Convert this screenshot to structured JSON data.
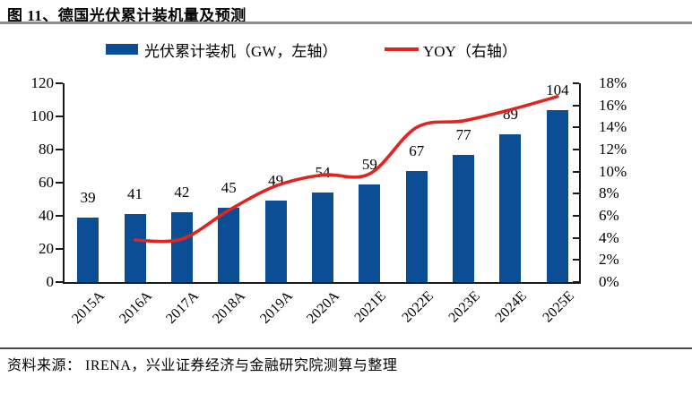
{
  "figure": {
    "title": "图 11、德国光伏累计装机量及预测",
    "source": "资料来源： IRENA，兴业证券经济与金融研究院测算与整理"
  },
  "colors": {
    "bar": "#0b4e96",
    "line": "#e02420",
    "axis": "#1a1a1a",
    "title_rule": "#8e8e8e"
  },
  "chart_data": {
    "type": "bar+line",
    "title": "德国光伏累计装机量及预测",
    "categories": [
      "2015A",
      "2016A",
      "2017A",
      "2018A",
      "2019A",
      "2020A",
      "2021E",
      "2022E",
      "2023E",
      "2024E",
      "2025E"
    ],
    "series": [
      {
        "name": "光伏累计装机（GW，左轴）",
        "type": "bar",
        "axis": "left",
        "color": "#0b4e96",
        "values": [
          39,
          41,
          42,
          45,
          49,
          54,
          59,
          67,
          77,
          89,
          104
        ]
      },
      {
        "name": "YOY（右轴）",
        "type": "line",
        "axis": "right",
        "color": "#e02420",
        "values": [
          null,
          3.8,
          3.9,
          6.5,
          8.7,
          9.7,
          9.8,
          14.0,
          14.6,
          15.6,
          16.8
        ]
      }
    ],
    "left_axis": {
      "min": 0,
      "max": 120,
      "step": 20,
      "tick_labels": [
        "0",
        "20",
        "40",
        "60",
        "80",
        "100",
        "120"
      ]
    },
    "right_axis": {
      "min": 0,
      "max": 18,
      "step": 2,
      "tick_labels": [
        "0%",
        "2%",
        "4%",
        "6%",
        "8%",
        "10%",
        "12%",
        "14%",
        "16%",
        "18%"
      ]
    },
    "grid": false,
    "legend_position": "top",
    "bar_labels_shown": true
  }
}
